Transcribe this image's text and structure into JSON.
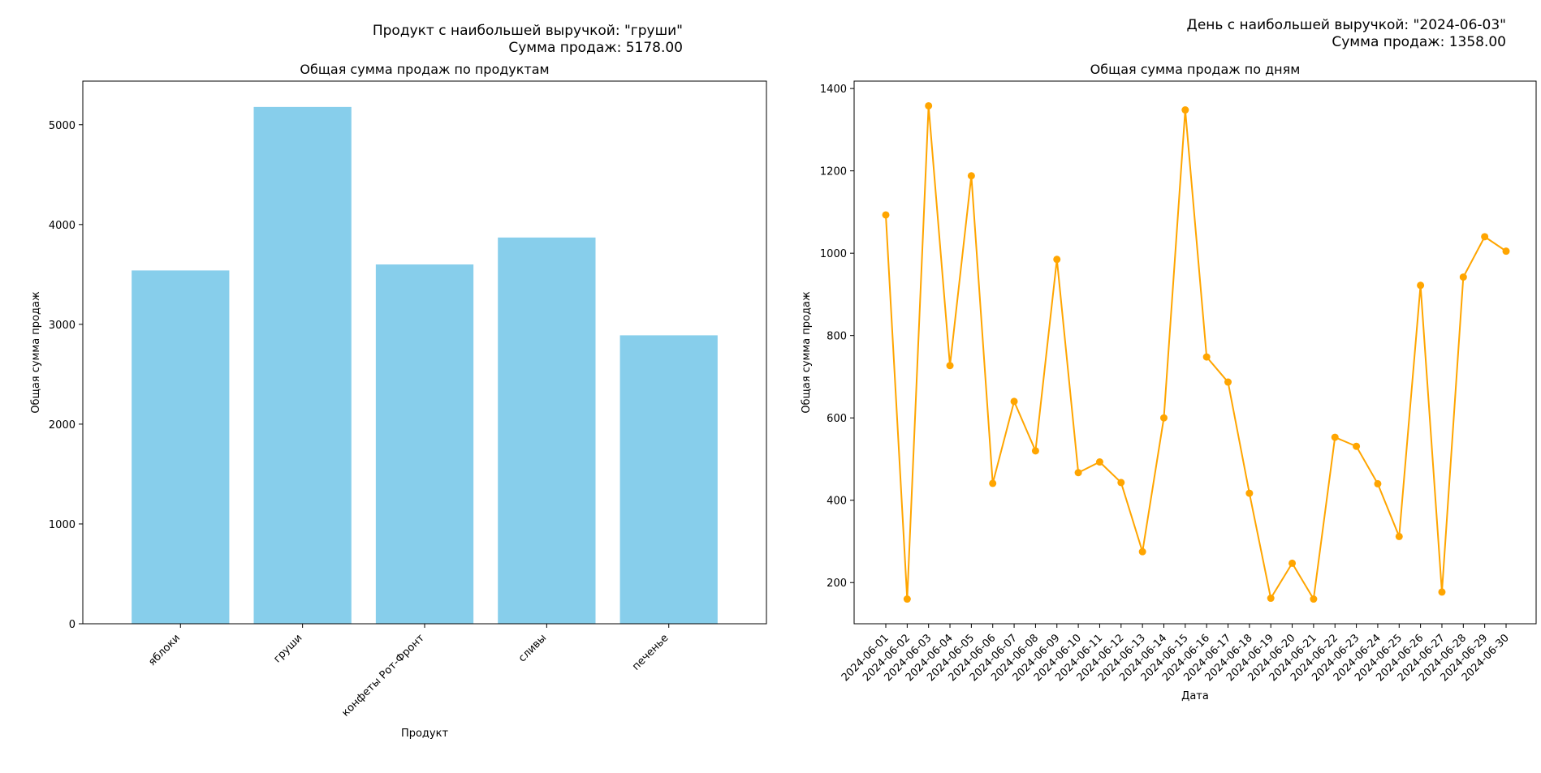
{
  "charts": {
    "left": {
      "annotation_product_line": "Продукт с наибольшей выручкой: \"груши\"",
      "annotation_sum_line": "Сумма продаж: 5178.00"
    },
    "right": {
      "annotation_day_line": "День с наибольшей выручкой: \"2024-06-03\"",
      "annotation_sum_line": "Сумма продаж: 1358.00"
    }
  },
  "chart_data": [
    {
      "type": "bar",
      "title": "Общая сумма продаж по продуктам",
      "xlabel": "Продукт",
      "ylabel": "Общая сумма продаж",
      "categories": [
        "яблоки",
        "груши",
        "конфеты Рот-Фронт",
        "сливы",
        "печенье"
      ],
      "values": [
        3540,
        5178,
        3600,
        3870,
        2890
      ],
      "ylim": [
        0,
        5437
      ],
      "yticks": [
        0,
        1000,
        2000,
        3000,
        4000,
        5000
      ],
      "bar_color": "#87ceeb",
      "grid": false
    },
    {
      "type": "line",
      "title": "Общая сумма продаж по дням",
      "xlabel": "Дата",
      "ylabel": "Общая сумма продаж",
      "x": [
        "2024-06-01",
        "2024-06-02",
        "2024-06-03",
        "2024-06-04",
        "2024-06-05",
        "2024-06-06",
        "2024-06-07",
        "2024-06-08",
        "2024-06-09",
        "2024-06-10",
        "2024-06-11",
        "2024-06-12",
        "2024-06-13",
        "2024-06-14",
        "2024-06-15",
        "2024-06-16",
        "2024-06-17",
        "2024-06-18",
        "2024-06-19",
        "2024-06-20",
        "2024-06-21",
        "2024-06-22",
        "2024-06-23",
        "2024-06-24",
        "2024-06-25",
        "2024-06-26",
        "2024-06-27",
        "2024-06-28",
        "2024-06-29",
        "2024-06-30"
      ],
      "values": [
        1093,
        160,
        1358,
        727,
        1188,
        441,
        640,
        520,
        985,
        467,
        493,
        443,
        275,
        600,
        1348,
        748,
        687,
        417,
        162,
        247,
        160,
        553,
        531,
        440,
        312,
        922,
        177,
        942,
        1040,
        1005
      ],
      "ylim": [
        100,
        1418
      ],
      "yticks": [
        200,
        400,
        600,
        800,
        1000,
        1200,
        1400
      ],
      "line_color": "#ffa500",
      "marker": "circle",
      "grid": false
    }
  ]
}
